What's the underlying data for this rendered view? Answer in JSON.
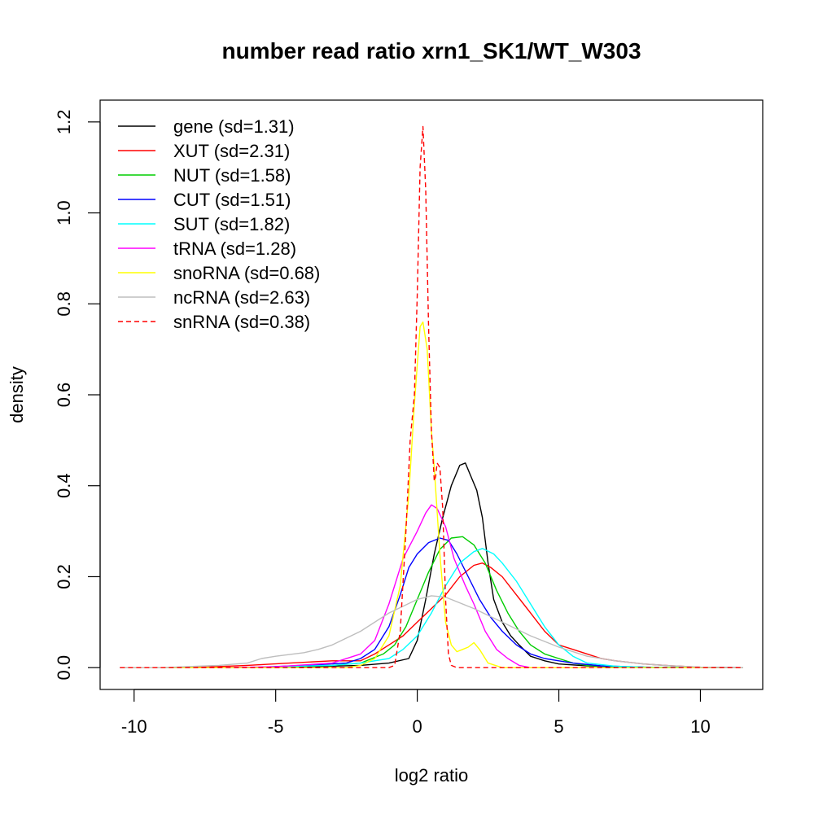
{
  "chart_data": {
    "type": "line",
    "title": "number read ratio xrn1_SK1/WT_W303",
    "xlabel": "log2 ratio",
    "ylabel": "density",
    "xlim": [
      -11.2,
      12.2
    ],
    "ylim": [
      -0.048,
      1.248
    ],
    "x_ticks": [
      -10,
      -5,
      0,
      5,
      10
    ],
    "x_tick_labels": [
      "-10",
      "-5",
      "0",
      "5",
      "10"
    ],
    "y_ticks": [
      0.0,
      0.2,
      0.4,
      0.6,
      0.8,
      1.0,
      1.2
    ],
    "y_tick_labels": [
      "0.0",
      "0.2",
      "0.4",
      "0.6",
      "0.8",
      "1.0",
      "1.2"
    ],
    "grid": false,
    "legend_position": "top-left",
    "series": [
      {
        "name": "gene (sd=1.31)",
        "color": "#000000",
        "dash": "solid",
        "points": [
          [
            -10.5,
            0
          ],
          [
            -5,
            0
          ],
          [
            -2,
            0.005
          ],
          [
            -1,
            0.01
          ],
          [
            -0.3,
            0.02
          ],
          [
            0,
            0.06
          ],
          [
            0.3,
            0.15
          ],
          [
            0.6,
            0.25
          ],
          [
            0.9,
            0.33
          ],
          [
            1.2,
            0.4
          ],
          [
            1.5,
            0.445
          ],
          [
            1.7,
            0.45
          ],
          [
            1.9,
            0.42
          ],
          [
            2.1,
            0.39
          ],
          [
            2.3,
            0.33
          ],
          [
            2.5,
            0.23
          ],
          [
            2.7,
            0.15
          ],
          [
            3,
            0.1
          ],
          [
            3.3,
            0.07
          ],
          [
            3.6,
            0.05
          ],
          [
            4,
            0.025
          ],
          [
            4.5,
            0.015
          ],
          [
            5,
            0.008
          ],
          [
            6,
            0.004
          ],
          [
            7,
            0.002
          ],
          [
            8,
            0.001
          ],
          [
            10,
            0
          ],
          [
            11.5,
            0
          ]
        ]
      },
      {
        "name": "XUT (sd=2.31)",
        "color": "#ff0000",
        "dash": "solid",
        "points": [
          [
            -10.5,
            0
          ],
          [
            -8,
            0
          ],
          [
            -6,
            0.005
          ],
          [
            -4.5,
            0.01
          ],
          [
            -3,
            0.015
          ],
          [
            -2,
            0.015
          ],
          [
            -1.5,
            0.03
          ],
          [
            -1,
            0.05
          ],
          [
            -0.5,
            0.07
          ],
          [
            0,
            0.1
          ],
          [
            0.5,
            0.13
          ],
          [
            1,
            0.16
          ],
          [
            1.5,
            0.2
          ],
          [
            2,
            0.225
          ],
          [
            2.3,
            0.23
          ],
          [
            2.6,
            0.22
          ],
          [
            3,
            0.2
          ],
          [
            3.5,
            0.16
          ],
          [
            4,
            0.12
          ],
          [
            4.5,
            0.08
          ],
          [
            5,
            0.05
          ],
          [
            5.5,
            0.04
          ],
          [
            6,
            0.03
          ],
          [
            6.5,
            0.02
          ],
          [
            7,
            0.015
          ],
          [
            8,
            0.008
          ],
          [
            9,
            0.004
          ],
          [
            10,
            0.001
          ],
          [
            11.5,
            0
          ]
        ]
      },
      {
        "name": "NUT (sd=1.58)",
        "color": "#00cd00",
        "dash": "solid",
        "points": [
          [
            -10.5,
            0
          ],
          [
            -6,
            0
          ],
          [
            -3,
            0.005
          ],
          [
            -2,
            0.01
          ],
          [
            -1.2,
            0.03
          ],
          [
            -0.8,
            0.05
          ],
          [
            -0.4,
            0.09
          ],
          [
            0,
            0.15
          ],
          [
            0.4,
            0.21
          ],
          [
            0.8,
            0.26
          ],
          [
            1.2,
            0.285
          ],
          [
            1.6,
            0.288
          ],
          [
            2,
            0.27
          ],
          [
            2.4,
            0.23
          ],
          [
            2.8,
            0.17
          ],
          [
            3.2,
            0.12
          ],
          [
            3.6,
            0.08
          ],
          [
            4,
            0.05
          ],
          [
            4.5,
            0.03
          ],
          [
            5,
            0.02
          ],
          [
            5.5,
            0.01
          ],
          [
            6,
            0.005
          ],
          [
            7,
            0.002
          ],
          [
            9,
            0
          ],
          [
            11.5,
            0
          ]
        ]
      },
      {
        "name": "CUT (sd=1.51)",
        "color": "#0000ff",
        "dash": "solid",
        "points": [
          [
            -10.5,
            0
          ],
          [
            -6,
            0
          ],
          [
            -4,
            0.005
          ],
          [
            -2.5,
            0.01
          ],
          [
            -2,
            0.02
          ],
          [
            -1.5,
            0.04
          ],
          [
            -1,
            0.09
          ],
          [
            -0.6,
            0.16
          ],
          [
            -0.3,
            0.22
          ],
          [
            0,
            0.25
          ],
          [
            0.4,
            0.275
          ],
          [
            0.8,
            0.285
          ],
          [
            1.1,
            0.28
          ],
          [
            1.4,
            0.25
          ],
          [
            1.8,
            0.2
          ],
          [
            2.2,
            0.15
          ],
          [
            2.6,
            0.11
          ],
          [
            3,
            0.08
          ],
          [
            3.5,
            0.05
          ],
          [
            4,
            0.03
          ],
          [
            4.5,
            0.02
          ],
          [
            5,
            0.015
          ],
          [
            5.5,
            0.01
          ],
          [
            6.5,
            0.004
          ],
          [
            8,
            0.001
          ],
          [
            11.5,
            0
          ]
        ]
      },
      {
        "name": "SUT (sd=1.82)",
        "color": "#00ffff",
        "dash": "solid",
        "points": [
          [
            -10.5,
            0
          ],
          [
            -6,
            0
          ],
          [
            -3,
            0.005
          ],
          [
            -2,
            0.01
          ],
          [
            -1,
            0.02
          ],
          [
            -0.5,
            0.04
          ],
          [
            0,
            0.07
          ],
          [
            0.5,
            0.12
          ],
          [
            1,
            0.18
          ],
          [
            1.5,
            0.23
          ],
          [
            2,
            0.255
          ],
          [
            2.3,
            0.262
          ],
          [
            2.7,
            0.25
          ],
          [
            3,
            0.23
          ],
          [
            3.5,
            0.19
          ],
          [
            4,
            0.14
          ],
          [
            4.5,
            0.09
          ],
          [
            5,
            0.05
          ],
          [
            5.5,
            0.025
          ],
          [
            6,
            0.01
          ],
          [
            7,
            0.003
          ],
          [
            8,
            0.001
          ],
          [
            11.5,
            0
          ]
        ]
      },
      {
        "name": "tRNA (sd=1.28)",
        "color": "#ff00ff",
        "dash": "solid",
        "points": [
          [
            -10.5,
            0
          ],
          [
            -7,
            0
          ],
          [
            -5,
            0.002
          ],
          [
            -3,
            0.01
          ],
          [
            -2,
            0.03
          ],
          [
            -1.5,
            0.06
          ],
          [
            -1,
            0.14
          ],
          [
            -0.5,
            0.24
          ],
          [
            0,
            0.3
          ],
          [
            0.3,
            0.34
          ],
          [
            0.5,
            0.358
          ],
          [
            0.7,
            0.35
          ],
          [
            1,
            0.31
          ],
          [
            1.3,
            0.24
          ],
          [
            1.7,
            0.18
          ],
          [
            2,
            0.14
          ],
          [
            2.4,
            0.08
          ],
          [
            2.8,
            0.04
          ],
          [
            3.2,
            0.02
          ],
          [
            3.6,
            0.005
          ],
          [
            4,
            0
          ],
          [
            11.5,
            0
          ]
        ]
      },
      {
        "name": "snoRNA (sd=0.68)",
        "color": "#ffff00",
        "dash": "solid",
        "points": [
          [
            -10.5,
            0
          ],
          [
            -2.5,
            0
          ],
          [
            -2,
            0.005
          ],
          [
            -1.5,
            0.02
          ],
          [
            -1,
            0.07
          ],
          [
            -0.6,
            0.18
          ],
          [
            -0.3,
            0.38
          ],
          [
            -0.1,
            0.58
          ],
          [
            0.1,
            0.75
          ],
          [
            0.2,
            0.76
          ],
          [
            0.35,
            0.7
          ],
          [
            0.5,
            0.52
          ],
          [
            0.6,
            0.44
          ],
          [
            0.8,
            0.25
          ],
          [
            1,
            0.1
          ],
          [
            1.2,
            0.05
          ],
          [
            1.4,
            0.035
          ],
          [
            1.6,
            0.04
          ],
          [
            1.8,
            0.045
          ],
          [
            2,
            0.055
          ],
          [
            2.2,
            0.04
          ],
          [
            2.5,
            0.01
          ],
          [
            3,
            0
          ],
          [
            11.5,
            0
          ]
        ]
      },
      {
        "name": "ncRNA (sd=2.63)",
        "color": "#bebebe",
        "dash": "solid",
        "points": [
          [
            -10.5,
            0
          ],
          [
            -9,
            0
          ],
          [
            -7,
            0.005
          ],
          [
            -6,
            0.01
          ],
          [
            -5.5,
            0.02
          ],
          [
            -5,
            0.025
          ],
          [
            -4,
            0.033
          ],
          [
            -3.5,
            0.04
          ],
          [
            -3,
            0.05
          ],
          [
            -2,
            0.08
          ],
          [
            -1,
            0.12
          ],
          [
            0,
            0.15
          ],
          [
            0.5,
            0.158
          ],
          [
            1,
            0.155
          ],
          [
            2,
            0.13
          ],
          [
            3,
            0.1
          ],
          [
            4,
            0.07
          ],
          [
            5,
            0.045
          ],
          [
            6,
            0.025
          ],
          [
            7,
            0.015
          ],
          [
            8,
            0.008
          ],
          [
            9,
            0.004
          ],
          [
            10,
            0.001
          ],
          [
            11.5,
            0
          ]
        ]
      },
      {
        "name": "snRNA (sd=0.38)",
        "color": "#ff0000",
        "dash": "dashed",
        "points": [
          [
            -10.5,
            0
          ],
          [
            -1,
            0
          ],
          [
            -0.8,
            0.005
          ],
          [
            -0.6,
            0.08
          ],
          [
            -0.4,
            0.3
          ],
          [
            -0.25,
            0.5
          ],
          [
            -0.1,
            0.6
          ],
          [
            0,
            0.82
          ],
          [
            0.1,
            1.1
          ],
          [
            0.2,
            1.19
          ],
          [
            0.3,
            1.05
          ],
          [
            0.4,
            0.75
          ],
          [
            0.5,
            0.52
          ],
          [
            0.55,
            0.47
          ],
          [
            0.6,
            0.41
          ],
          [
            0.65,
            0.42
          ],
          [
            0.7,
            0.45
          ],
          [
            0.8,
            0.44
          ],
          [
            0.9,
            0.35
          ],
          [
            1,
            0.15
          ],
          [
            1.1,
            0.03
          ],
          [
            1.2,
            0.005
          ],
          [
            1.4,
            0
          ],
          [
            11.5,
            0
          ]
        ]
      }
    ]
  }
}
